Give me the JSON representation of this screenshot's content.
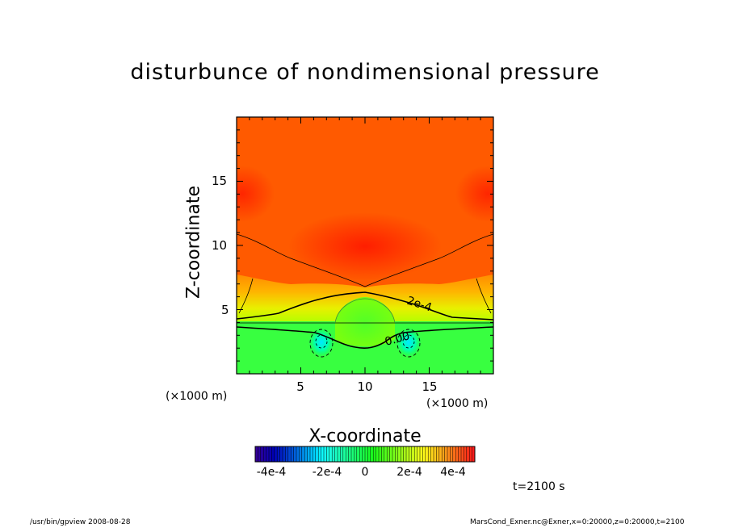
{
  "chart_data": {
    "type": "heatmap",
    "title": "disturbunce of nondimensional pressure",
    "xlabel": "X-coordinate",
    "ylabel": "Z-coordinate",
    "x_unit": "(×1000 m)",
    "y_unit": "(×1000 m)",
    "xlim": [
      0,
      20
    ],
    "ylim": [
      0,
      20
    ],
    "xticks": [
      5,
      10,
      15
    ],
    "yticks": [
      5,
      10,
      15
    ],
    "contour_labels": [
      "2e-4",
      "0.00"
    ],
    "colorbar": {
      "ticks": [
        "-4e-4",
        "-2e-4",
        "0",
        "2e-4",
        "4e-4"
      ],
      "tick_values": [
        -0.0004,
        -0.0002,
        0,
        0.0002,
        0.0004
      ],
      "range": [
        -0.0005,
        0.0005
      ]
    },
    "time_label": "t=2100 s"
  },
  "footer": {
    "left": "/usr/bin/gpview   2008-08-28",
    "right": "MarsCond_Exner.nc@Exner,x=0:20000,z=0:20000,t=2100"
  }
}
